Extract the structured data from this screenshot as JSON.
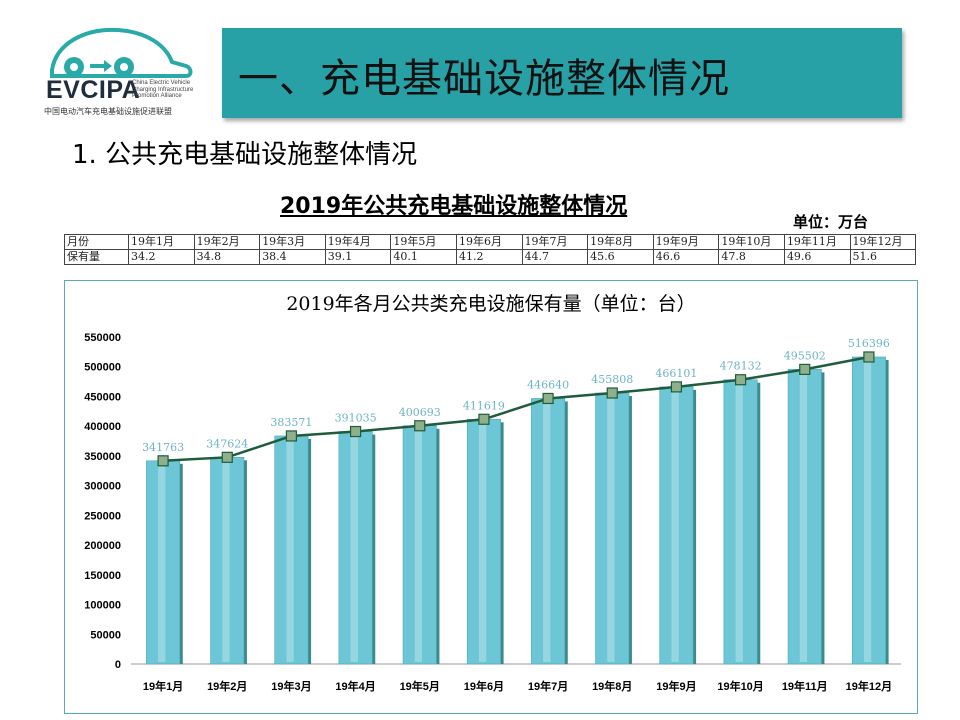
{
  "header": {
    "logo_text": "EVCIPA",
    "logo_subtitle": "China Electric Vehicle Charging Infrastructure Promotion Alliance",
    "logo_cn": "中国电动汽车充电基础设施促进联盟",
    "banner_title": "一、充电基础设施整体情况"
  },
  "section_title": "1. 公共充电基础设施整体情况",
  "table": {
    "title": "2019年公共充电基础设施整体情况",
    "unit": "单位：万台",
    "header_label": "月份",
    "row_label": "保有量",
    "months": [
      "19年1月",
      "19年2月",
      "19年3月",
      "19年4月",
      "19年5月",
      "19年6月",
      "19年7月",
      "19年8月",
      "19年9月",
      "19年10月",
      "19年11月",
      "19年12月"
    ],
    "values": [
      "34.2",
      "34.8",
      "38.4",
      "39.1",
      "40.1",
      "41.2",
      "44.7",
      "45.6",
      "46.6",
      "47.8",
      "49.6",
      "51.6"
    ]
  },
  "colors": {
    "banner": "#27a1a6",
    "bar": "#6cc6d6",
    "line": "#1e5c3c",
    "marker": "#8fb08a",
    "data_label": "#6fb3c8"
  },
  "chart_data": {
    "type": "bar",
    "title": "2019年各月公共类充电设施保有量（单位：台）",
    "categories": [
      "19年1月",
      "19年2月",
      "19年3月",
      "19年4月",
      "19年5月",
      "19年6月",
      "19年7月",
      "19年8月",
      "19年9月",
      "19年10月",
      "19年11月",
      "19年12月"
    ],
    "values": [
      341763,
      347624,
      383571,
      391035,
      400693,
      411619,
      446640,
      455808,
      466101,
      478132,
      495502,
      516396
    ],
    "overlay_line": true,
    "ylim": [
      0,
      550000
    ],
    "yticks": [
      "0",
      "50000",
      "100000",
      "150000",
      "200000",
      "250000",
      "300000",
      "350000",
      "400000",
      "450000",
      "500000",
      "550000"
    ],
    "grid": false,
    "legend": "none"
  }
}
